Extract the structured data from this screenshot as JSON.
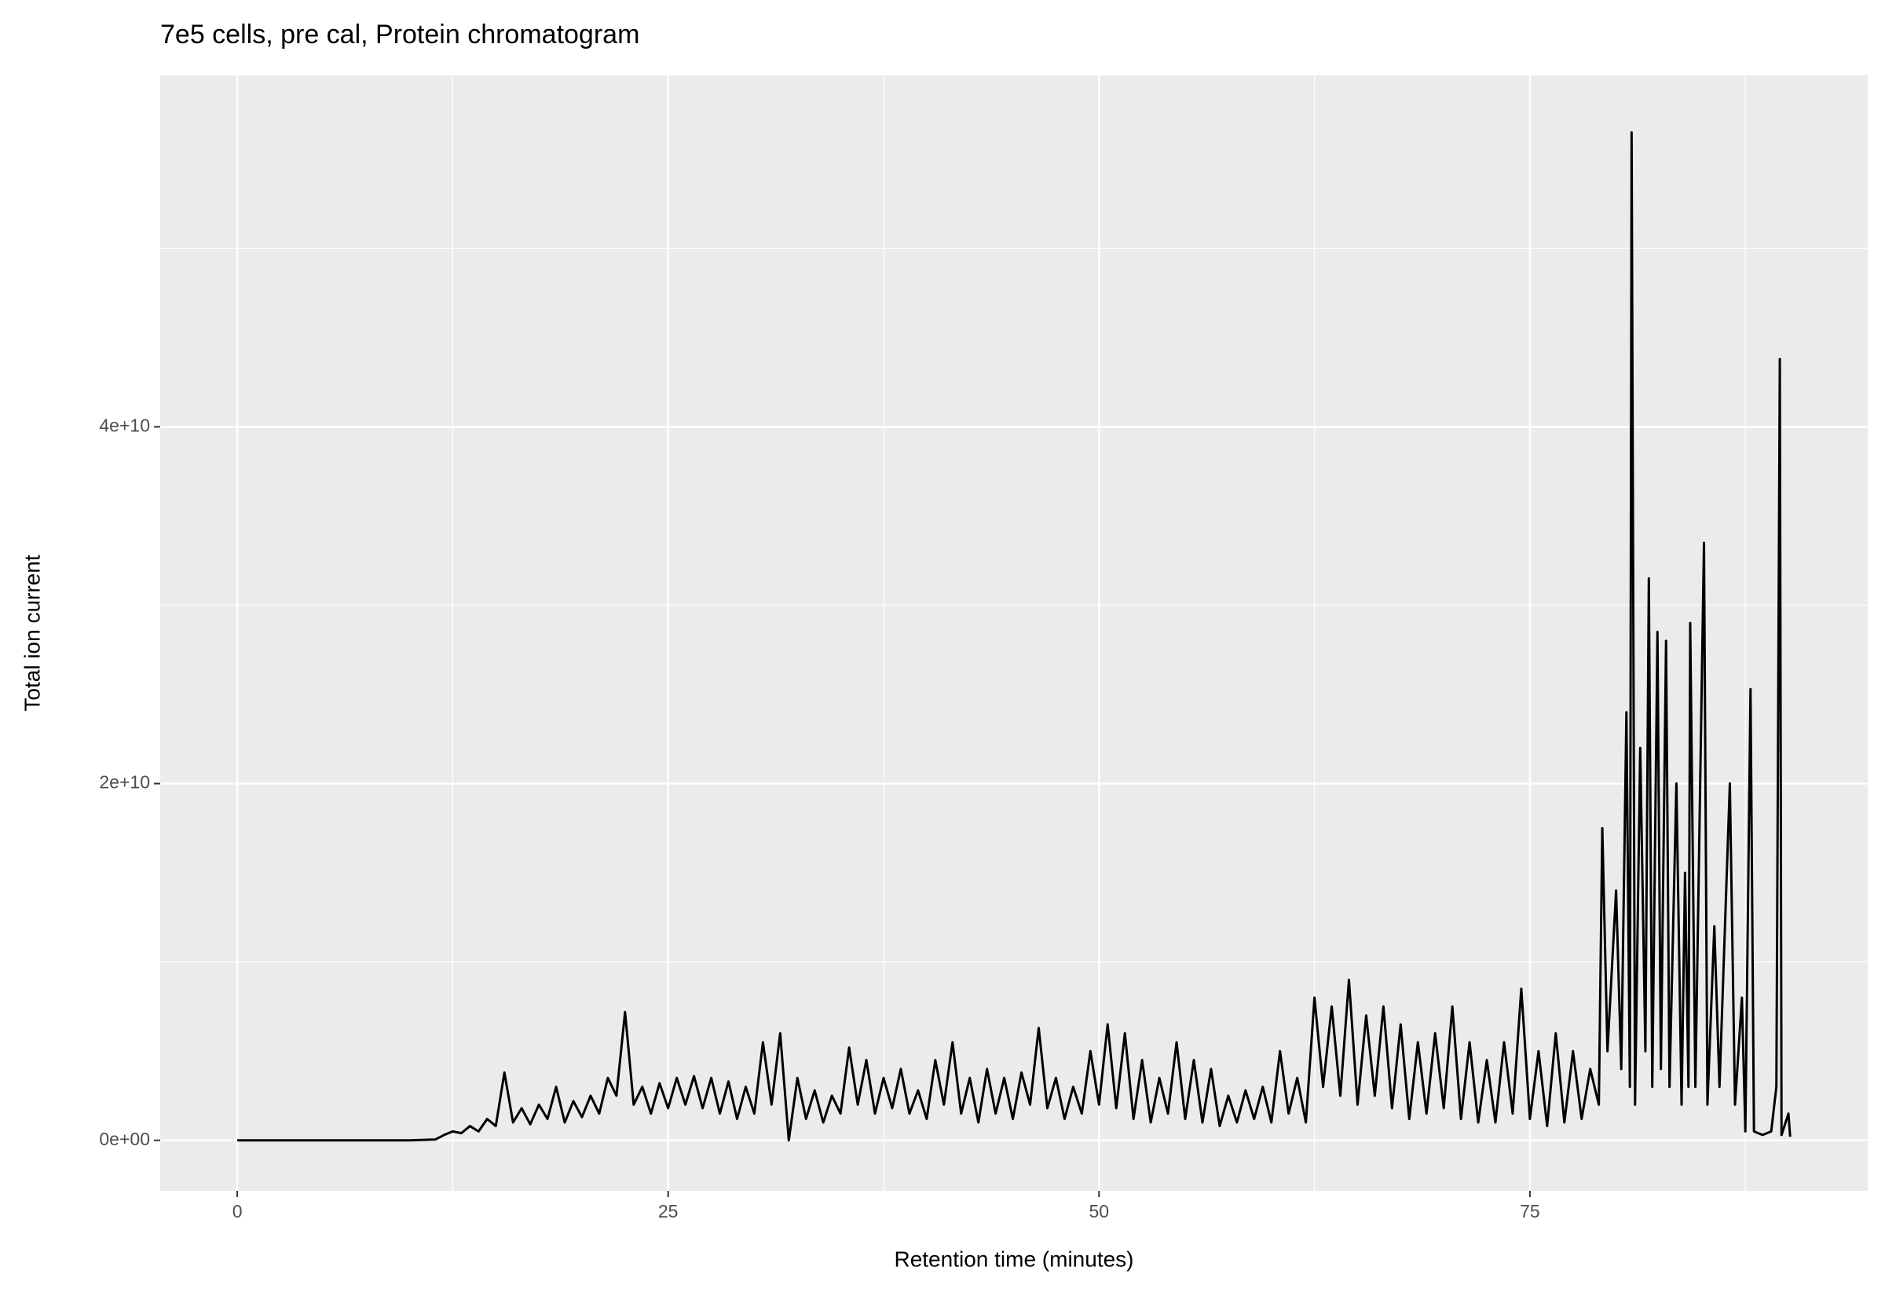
{
  "chart_data": {
    "type": "line",
    "title": "7e5 cells, pre cal, Protein chromatogram",
    "x_label": "Retention time (minutes)",
    "y_label": "Total ion current",
    "xlim": [
      -4.47,
      94.6
    ],
    "ylim": [
      -2830000000.0,
      59700000000.0
    ],
    "xticks": [
      0,
      25,
      50,
      75
    ],
    "yticks": [
      {
        "value": 0,
        "label": "0e+00"
      },
      {
        "value": 20000000000.0,
        "label": "2e+10"
      },
      {
        "value": 40000000000.0,
        "label": "4e+10"
      }
    ],
    "x_minor_grid": [
      12.5,
      37.5,
      62.5,
      87.5
    ],
    "y_minor_grid": [
      10000000000.0,
      30000000000.0,
      50000000000.0
    ],
    "grid": true,
    "panel_color": "#ebebeb",
    "series": [
      {
        "color": "#000000",
        "x": [
          0,
          5,
          10,
          11.5,
          12,
          12.5,
          13,
          13.5,
          14,
          14.5,
          15,
          15.5,
          16,
          16.5,
          17,
          17.5,
          18,
          18.5,
          19,
          19.5,
          20,
          20.5,
          21,
          21.5,
          22,
          22.5,
          23,
          23.5,
          24,
          24.5,
          25,
          25.5,
          26,
          26.5,
          27,
          27.5,
          28,
          28.5,
          29,
          29.5,
          30,
          30.5,
          31,
          31.5,
          32,
          32.5,
          33,
          33.5,
          34,
          34.5,
          35,
          35.5,
          36,
          36.5,
          37,
          37.5,
          38,
          38.5,
          39,
          39.5,
          40,
          40.5,
          41,
          41.5,
          42,
          42.5,
          43,
          43.5,
          44,
          44.5,
          45,
          45.5,
          46,
          46.5,
          47,
          47.5,
          48,
          48.5,
          49,
          49.5,
          50,
          50.5,
          51,
          51.5,
          52,
          52.5,
          53,
          53.5,
          54,
          54.5,
          55,
          55.5,
          56,
          56.5,
          57,
          57.5,
          58,
          58.5,
          59,
          59.5,
          60,
          60.5,
          61,
          61.5,
          62,
          62.5,
          63,
          63.5,
          64,
          64.5,
          65,
          65.5,
          66,
          66.5,
          67,
          67.5,
          68,
          68.5,
          69,
          69.5,
          70,
          70.5,
          71,
          71.5,
          72,
          72.5,
          73,
          73.5,
          74,
          74.5,
          75,
          75.5,
          76,
          76.5,
          77,
          77.5,
          78,
          78.5,
          79,
          79.2,
          79.5,
          80,
          80.3,
          80.6,
          80.8,
          80.9,
          81.1,
          81.4,
          81.7,
          81.9,
          82.1,
          82.4,
          82.6,
          82.9,
          83.1,
          83.5,
          83.8,
          84.0,
          84.2,
          84.3,
          84.6,
          85.1,
          85.3,
          85.7,
          86.0,
          86.6,
          86.9,
          87.3,
          87.5,
          87.8,
          88.0,
          88.5,
          89.0,
          89.3,
          89.5,
          89.6,
          90.0,
          90.1
        ],
        "values": [
          0,
          0,
          0,
          50000000.0,
          300000000.0,
          500000000.0,
          400000000.0,
          800000000.0,
          500000000.0,
          1200000000.0,
          800000000.0,
          3800000000.0,
          1000000000.0,
          1800000000.0,
          900000000.0,
          2000000000.0,
          1200000000.0,
          3000000000.0,
          1000000000.0,
          2200000000.0,
          1300000000.0,
          2500000000.0,
          1500000000.0,
          3500000000.0,
          2500000000.0,
          7200000000.0,
          2000000000.0,
          3000000000.0,
          1500000000.0,
          3200000000.0,
          1800000000.0,
          3500000000.0,
          2000000000.0,
          3600000000.0,
          1800000000.0,
          3500000000.0,
          1500000000.0,
          3300000000.0,
          1200000000.0,
          3000000000.0,
          1500000000.0,
          5500000000.0,
          2000000000.0,
          6000000000.0,
          0,
          3500000000.0,
          1200000000.0,
          2800000000.0,
          1000000000.0,
          2500000000.0,
          1500000000.0,
          5200000000.0,
          2000000000.0,
          4500000000.0,
          1500000000.0,
          3500000000.0,
          1800000000.0,
          4000000000.0,
          1500000000.0,
          2800000000.0,
          1200000000.0,
          4500000000.0,
          2000000000.0,
          5500000000.0,
          1500000000.0,
          3500000000.0,
          1000000000.0,
          4000000000.0,
          1500000000.0,
          3500000000.0,
          1200000000.0,
          3800000000.0,
          2000000000.0,
          6300000000.0,
          1800000000.0,
          3500000000.0,
          1200000000.0,
          3000000000.0,
          1500000000.0,
          5000000000.0,
          2000000000.0,
          6500000000.0,
          1800000000.0,
          6000000000.0,
          1200000000.0,
          4500000000.0,
          1000000000.0,
          3500000000.0,
          1500000000.0,
          5500000000.0,
          1200000000.0,
          4500000000.0,
          1000000000.0,
          4000000000.0,
          800000000.0,
          2500000000.0,
          1000000000.0,
          2800000000.0,
          1200000000.0,
          3000000000.0,
          1000000000.0,
          5000000000.0,
          1500000000.0,
          3500000000.0,
          1000000000.0,
          8000000000.0,
          3000000000.0,
          7500000000.0,
          2500000000.0,
          9000000000.0,
          2000000000.0,
          7000000000.0,
          2500000000.0,
          7500000000.0,
          1800000000.0,
          6500000000.0,
          1200000000.0,
          5500000000.0,
          1500000000.0,
          6000000000.0,
          1800000000.0,
          7500000000.0,
          1200000000.0,
          5500000000.0,
          1000000000.0,
          4500000000.0,
          1000000000.0,
          5500000000.0,
          1500000000.0,
          8500000000.0,
          1200000000.0,
          5000000000.0,
          800000000.0,
          6000000000.0,
          1000000000.0,
          5000000000.0,
          1200000000.0,
          4000000000.0,
          2000000000.0,
          17500000000.0,
          5000000000.0,
          14000000000.0,
          4000000000.0,
          24000000000.0,
          3000000000.0,
          56500000000.0,
          2000000000.0,
          22000000000.0,
          5000000000.0,
          31500000000.0,
          3000000000.0,
          28500000000.0,
          4000000000.0,
          28000000000.0,
          3000000000.0,
          20000000000.0,
          2000000000.0,
          15000000000.0,
          3000000000.0,
          29000000000.0,
          3000000000.0,
          33500000000.0,
          2000000000.0,
          12000000000.0,
          3000000000.0,
          20000000000.0,
          2000000000.0,
          8000000000.0,
          500000000.0,
          25300000000.0,
          500000000.0,
          300000000.0,
          500000000.0,
          3000000000.0,
          43800000000.0,
          300000000.0,
          1500000000.0,
          200000000.0
        ]
      }
    ]
  }
}
